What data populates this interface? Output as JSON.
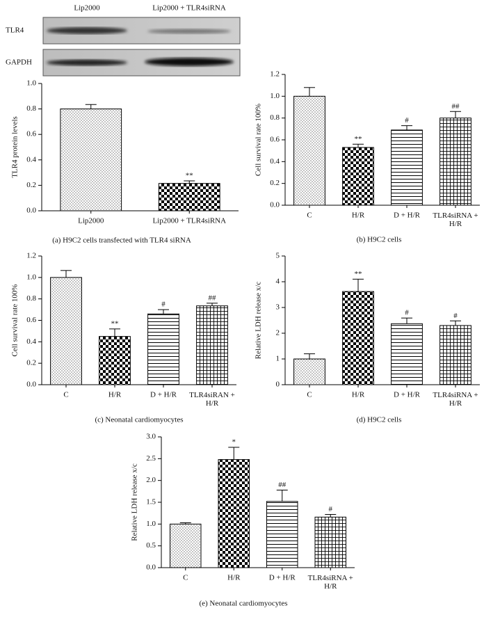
{
  "blot": {
    "columns": [
      "Lip2000",
      "Lip2000 + TLR4siRNA"
    ],
    "rows": [
      "TLR4",
      "GAPDH"
    ]
  },
  "chart_data": [
    {
      "type": "bar",
      "caption": "(a)  H9C2 cells transfected with TLR4 siRNA",
      "ylabel": "TLR4 protein levels",
      "categories": [
        "Lip2000",
        "Lip2000 + TLR4siRNA"
      ],
      "values": [
        0.8,
        0.215
      ],
      "errors": [
        0.035,
        0.02
      ],
      "annotations": [
        null,
        "**"
      ],
      "patterns": [
        "dots",
        "checker"
      ],
      "ylim": [
        0,
        1.0
      ],
      "yticks": [
        {
          "value": 0,
          "label": "0.0"
        },
        0.2,
        0.4,
        0.6,
        0.8,
        {
          "value": 1,
          "label": "1.0"
        }
      ]
    },
    {
      "type": "bar",
      "caption": "(b)  H9C2 cells",
      "ylabel": "Cell survival rate 100%",
      "categories": [
        "C",
        "H/R",
        "D + H/R",
        "TLR4siRNA +\nH/R"
      ],
      "values": [
        1.0,
        0.53,
        0.69,
        0.8
      ],
      "errors": [
        0.08,
        0.03,
        0.04,
        0.06
      ],
      "annotations": [
        null,
        "**",
        "#",
        "##"
      ],
      "patterns": [
        "dots",
        "checker",
        "hlines",
        "grid"
      ],
      "ylim": [
        0,
        1.2
      ],
      "yticks": [
        {
          "value": 0,
          "label": "0.0"
        },
        0.2,
        0.4,
        0.6,
        0.8,
        {
          "value": 1,
          "label": "1.0"
        },
        1.2
      ]
    },
    {
      "type": "bar",
      "caption": "(c)  Neonatal cardiomyocytes",
      "ylabel": "Cell survival rate 100%",
      "categories": [
        "C",
        "H/R",
        "D + H/R",
        "TLR4siRAN +\nH/R"
      ],
      "values": [
        1.0,
        0.45,
        0.66,
        0.735
      ],
      "errors": [
        0.065,
        0.07,
        0.04,
        0.025
      ],
      "annotations": [
        null,
        "**",
        "#",
        "##"
      ],
      "patterns": [
        "dots",
        "checker",
        "hlines",
        "grid"
      ],
      "ylim": [
        0,
        1.2
      ],
      "yticks": [
        {
          "value": 0,
          "label": "0.0"
        },
        0.2,
        0.4,
        0.6,
        0.8,
        {
          "value": 1,
          "label": "1.0"
        },
        1.2
      ]
    },
    {
      "type": "bar",
      "caption": "(d)  H9C2 cells",
      "ylabel": "Relative LDH release x/c",
      "categories": [
        "C",
        "H/R",
        "D + H/R",
        "TLR4siRNA +\nH/R"
      ],
      "values": [
        1.0,
        3.62,
        2.37,
        2.3
      ],
      "errors": [
        0.2,
        0.48,
        0.22,
        0.18
      ],
      "annotations": [
        null,
        "**",
        "#",
        "#"
      ],
      "patterns": [
        "dots",
        "checker",
        "hlines",
        "grid"
      ],
      "ylim": [
        0,
        5
      ],
      "yticks": [
        0,
        1,
        2,
        3,
        4,
        5
      ]
    },
    {
      "type": "bar",
      "caption": "(e)  Neonatal cardiomyocytes",
      "ylabel": "Relative LDH release x/c",
      "categories": [
        "C",
        "H/R",
        "D + H/R",
        "TLR4siRNA +\nH/R"
      ],
      "values": [
        1.0,
        2.48,
        1.52,
        1.16
      ],
      "errors": [
        0.03,
        0.28,
        0.26,
        0.06
      ],
      "annotations": [
        null,
        "*",
        "##",
        "#"
      ],
      "patterns": [
        "dots",
        "checker",
        "hlines",
        "grid"
      ],
      "ylim": [
        0,
        3.0
      ],
      "yticks": [
        {
          "value": 0,
          "label": "0.0"
        },
        0.5,
        {
          "value": 1,
          "label": "1.0"
        },
        1.5,
        {
          "value": 2,
          "label": "2.0"
        },
        2.5,
        {
          "value": 3,
          "label": "3.0"
        }
      ]
    }
  ]
}
